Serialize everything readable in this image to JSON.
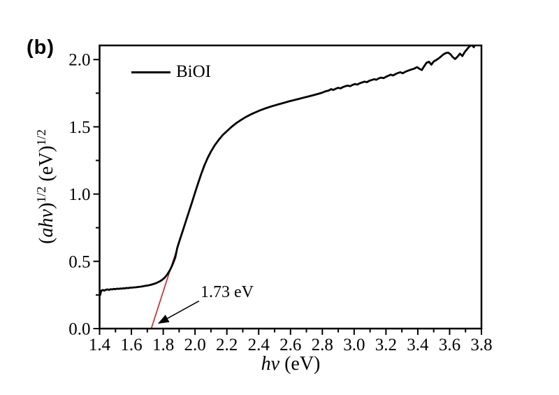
{
  "figure_label": "(b)",
  "background_color": "#ffffff",
  "chart_data": {
    "type": "line",
    "title": "",
    "xlabel": "hv (eV)",
    "ylabel": "(ahv)^1/2 (eV)^1/2",
    "xlabel_parts": [
      {
        "text": "hv",
        "style": "italic"
      },
      {
        "text": " (eV)",
        "style": ""
      }
    ],
    "ylabel_parts": [
      {
        "text": "(",
        "style": ""
      },
      {
        "text": "ahv",
        "style": "italic"
      },
      {
        "text": ")",
        "style": ""
      },
      {
        "text": "1/2",
        "style": "sup"
      },
      {
        "text": " (eV)",
        "style": ""
      },
      {
        "text": "1/2",
        "style": "sup"
      }
    ],
    "xlim": [
      1.4,
      3.8
    ],
    "ylim": [
      0,
      2.105
    ],
    "grid": false,
    "frame_color": "#000000",
    "xticks": {
      "values": [
        1.4,
        1.6,
        1.8,
        2.0,
        2.2,
        2.4,
        2.6,
        2.8,
        3.0,
        3.2,
        3.4,
        3.6,
        3.8
      ],
      "labels": [
        "1.4",
        "1.6",
        "1.8",
        "2.0",
        "2.2",
        "2.4",
        "2.6",
        "2.8",
        "3.0",
        "3.2",
        "3.4",
        "3.6",
        "3.8"
      ],
      "minor_step": 0.1
    },
    "yticks": {
      "values": [
        0.0,
        0.5,
        1.0,
        1.5,
        2.0
      ],
      "labels": [
        "0.0",
        "0.5",
        "1.0",
        "1.5",
        "2.0"
      ],
      "minor_step": 0.25
    },
    "legend": {
      "position": "top-left",
      "entries": [
        {
          "label": "BiOI",
          "color": "#000000"
        }
      ]
    },
    "series": [
      {
        "name": "BiOI",
        "color": "#000000",
        "points": [
          [
            1.4,
            0.272
          ],
          [
            1.404,
            0.25
          ],
          [
            1.41,
            0.281
          ],
          [
            1.42,
            0.287
          ],
          [
            1.43,
            0.282
          ],
          [
            1.44,
            0.289
          ],
          [
            1.45,
            0.291
          ],
          [
            1.46,
            0.288
          ],
          [
            1.47,
            0.293
          ],
          [
            1.48,
            0.291
          ],
          [
            1.49,
            0.295
          ],
          [
            1.5,
            0.293
          ],
          [
            1.51,
            0.297
          ],
          [
            1.52,
            0.295
          ],
          [
            1.53,
            0.298
          ],
          [
            1.54,
            0.297
          ],
          [
            1.55,
            0.3
          ],
          [
            1.56,
            0.299
          ],
          [
            1.57,
            0.302
          ],
          [
            1.58,
            0.301
          ],
          [
            1.59,
            0.304
          ],
          [
            1.6,
            0.304
          ],
          [
            1.615,
            0.306
          ],
          [
            1.63,
            0.307
          ],
          [
            1.645,
            0.31
          ],
          [
            1.66,
            0.312
          ],
          [
            1.675,
            0.315
          ],
          [
            1.69,
            0.318
          ],
          [
            1.705,
            0.321
          ],
          [
            1.72,
            0.325
          ],
          [
            1.735,
            0.33
          ],
          [
            1.75,
            0.336
          ],
          [
            1.765,
            0.343
          ],
          [
            1.78,
            0.352
          ],
          [
            1.795,
            0.364
          ],
          [
            1.81,
            0.38
          ],
          [
            1.825,
            0.402
          ],
          [
            1.84,
            0.43
          ],
          [
            1.852,
            0.458
          ],
          [
            1.864,
            0.492
          ],
          [
            1.876,
            0.53
          ],
          [
            1.888,
            0.598
          ],
          [
            1.9,
            0.645
          ],
          [
            1.92,
            0.716
          ],
          [
            1.94,
            0.79
          ],
          [
            1.96,
            0.863
          ],
          [
            1.98,
            0.936
          ],
          [
            2.0,
            1.01
          ],
          [
            2.02,
            1.083
          ],
          [
            2.04,
            1.153
          ],
          [
            2.06,
            1.216
          ],
          [
            2.08,
            1.27
          ],
          [
            2.1,
            1.316
          ],
          [
            2.125,
            1.365
          ],
          [
            2.15,
            1.405
          ],
          [
            2.175,
            1.44
          ],
          [
            2.2,
            1.468
          ],
          [
            2.23,
            1.5
          ],
          [
            2.26,
            1.528
          ],
          [
            2.29,
            1.552
          ],
          [
            2.32,
            1.574
          ],
          [
            2.35,
            1.592
          ],
          [
            2.38,
            1.608
          ],
          [
            2.41,
            1.623
          ],
          [
            2.44,
            1.636
          ],
          [
            2.47,
            1.648
          ],
          [
            2.5,
            1.659
          ],
          [
            2.53,
            1.669
          ],
          [
            2.56,
            1.679
          ],
          [
            2.59,
            1.689
          ],
          [
            2.62,
            1.698
          ],
          [
            2.65,
            1.707
          ],
          [
            2.68,
            1.716
          ],
          [
            2.71,
            1.725
          ],
          [
            2.74,
            1.734
          ],
          [
            2.77,
            1.744
          ],
          [
            2.8,
            1.754
          ],
          [
            2.82,
            1.764
          ],
          [
            2.84,
            1.77
          ],
          [
            2.855,
            1.78
          ],
          [
            2.87,
            1.774
          ],
          [
            2.885,
            1.784
          ],
          [
            2.9,
            1.79
          ],
          [
            2.915,
            1.786
          ],
          [
            2.93,
            1.796
          ],
          [
            2.945,
            1.802
          ],
          [
            2.96,
            1.806
          ],
          [
            2.975,
            1.802
          ],
          [
            2.99,
            1.812
          ],
          [
            3.005,
            1.818
          ],
          [
            3.02,
            1.814
          ],
          [
            3.035,
            1.824
          ],
          [
            3.05,
            1.83
          ],
          [
            3.065,
            1.836
          ],
          [
            3.08,
            1.832
          ],
          [
            3.095,
            1.842
          ],
          [
            3.11,
            1.848
          ],
          [
            3.125,
            1.854
          ],
          [
            3.14,
            1.85
          ],
          [
            3.155,
            1.86
          ],
          [
            3.17,
            1.866
          ],
          [
            3.185,
            1.862
          ],
          [
            3.2,
            1.872
          ],
          [
            3.215,
            1.88
          ],
          [
            3.23,
            1.888
          ],
          [
            3.245,
            1.882
          ],
          [
            3.26,
            1.892
          ],
          [
            3.275,
            1.9
          ],
          [
            3.29,
            1.906
          ],
          [
            3.305,
            1.898
          ],
          [
            3.32,
            1.908
          ],
          [
            3.335,
            1.916
          ],
          [
            3.35,
            1.922
          ],
          [
            3.365,
            1.928
          ],
          [
            3.38,
            1.934
          ],
          [
            3.395,
            1.944
          ],
          [
            3.41,
            1.932
          ],
          [
            3.425,
            1.922
          ],
          [
            3.44,
            1.95
          ],
          [
            3.455,
            1.976
          ],
          [
            3.47,
            1.984
          ],
          [
            3.485,
            1.962
          ],
          [
            3.5,
            1.986
          ],
          [
            3.515,
            1.996
          ],
          [
            3.53,
            2.008
          ],
          [
            3.545,
            2.022
          ],
          [
            3.56,
            2.038
          ],
          [
            3.575,
            2.048
          ],
          [
            3.59,
            2.052
          ],
          [
            3.605,
            2.04
          ],
          [
            3.62,
            2.018
          ],
          [
            3.635,
            2.004
          ],
          [
            3.65,
            2.022
          ],
          [
            3.665,
            2.044
          ],
          [
            3.68,
            2.026
          ],
          [
            3.695,
            2.056
          ],
          [
            3.71,
            2.078
          ],
          [
            3.725,
            2.098
          ],
          [
            3.74,
            2.108
          ],
          [
            3.752,
            2.092
          ],
          [
            3.76,
            2.112
          ]
        ]
      }
    ],
    "tangent_line": {
      "color": "#cc2026",
      "x1": 1.725,
      "y1": 0.0,
      "x2": 2.058,
      "y2": 1.222,
      "band_gap_ev": 1.73
    },
    "annotation": {
      "text": "1.73 eV",
      "arrow_from": [
        2.025,
        0.205
      ],
      "arrow_to": [
        1.772,
        0.04
      ]
    }
  }
}
